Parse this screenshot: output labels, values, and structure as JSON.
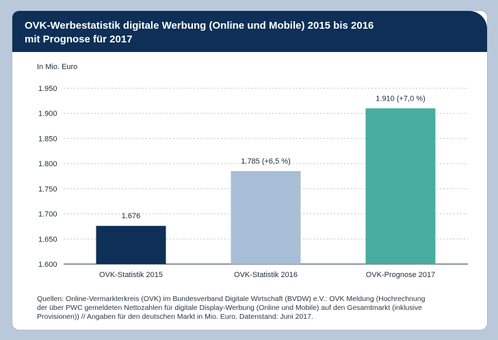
{
  "header": {
    "title_line1": "OVK-Werbestatistik digitale Werbung (Online und Mobile) 2015 bis 2016",
    "title_line2": "mit Prognose für 2017"
  },
  "chart_data": {
    "type": "bar",
    "ylabel": "In Mio. Euro",
    "ylim": [
      1600,
      1950
    ],
    "yticks": [
      1600,
      1650,
      1700,
      1750,
      1800,
      1850,
      1900,
      1950
    ],
    "ytick_labels": [
      "1.600",
      "1.650",
      "1.700",
      "1.750",
      "1.800",
      "1.850",
      "1.900",
      "1.950"
    ],
    "grid": true,
    "categories": [
      "OVK-Statistik 2015",
      "OVK-Statistik 2016",
      "OVK-Prognose 2017"
    ],
    "values": [
      1676,
      1785,
      1910
    ],
    "data_labels": [
      "1.676",
      "1.785 (+6,5 %)",
      "1.910 (+7,0 %)"
    ],
    "colors": [
      "#0e2f56",
      "#a8bdd6",
      "#46ad9f"
    ]
  },
  "footer": {
    "line1": "Quellen: Online-Vermarkterkreis (OVK) im Bundesverband Digitale Wirtschaft (BVDW) e.V.: OVK Meldung (Hochrechnung",
    "line2": "der über PWC gemeldeten Nettozahlen für digitale Display-Werbung (Online und Mobile) auf den Gesamtmarkt (inklusive",
    "line3": "Provisionen)) // Angaben für den deutschen Markt in Mio. Euro. Datenstand: Juni 2017."
  }
}
